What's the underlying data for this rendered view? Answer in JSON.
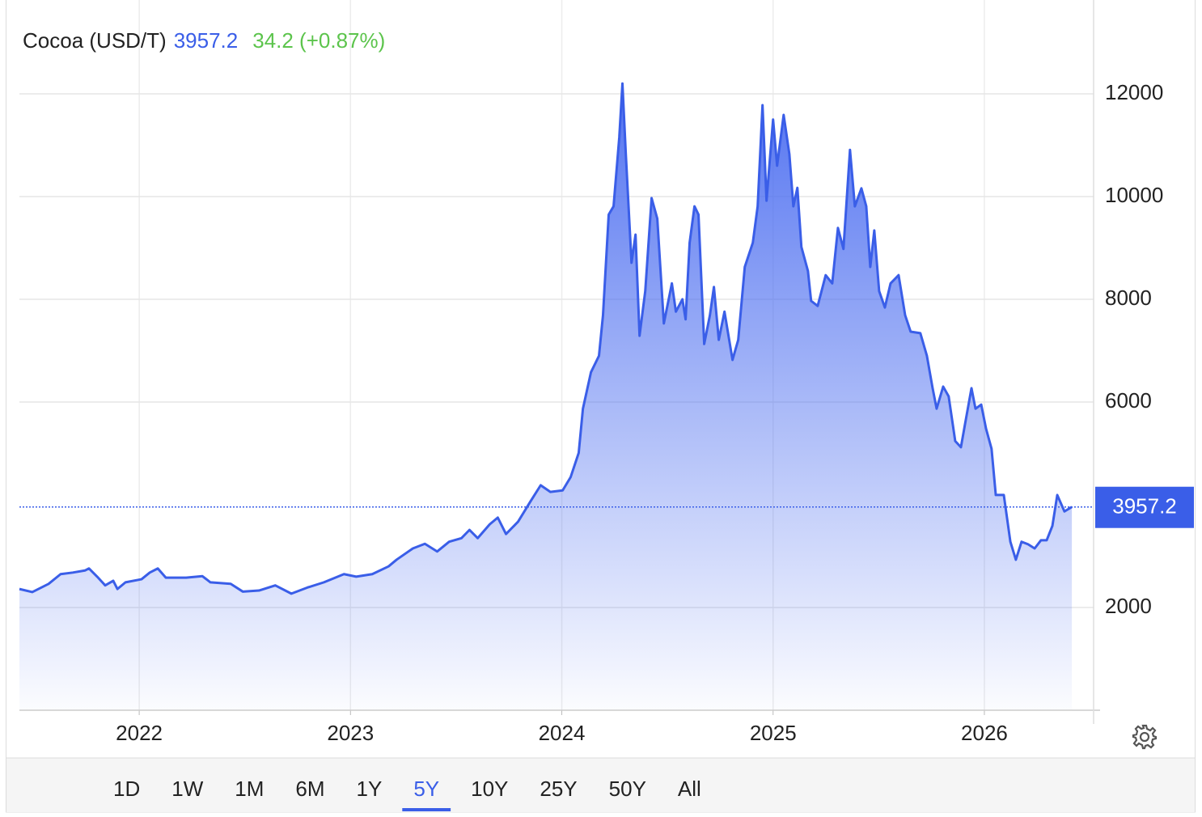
{
  "chart_data": {
    "type": "area",
    "title": "Cocoa (USD/T)",
    "last_value": 3957.2,
    "change": "34.2 (+0.87%)",
    "color": "#3a5ee8",
    "value_color": "#3a5ee8",
    "change_color": "#5cc44c",
    "grid": true,
    "xlim": [
      2021.433,
      2026.517
    ],
    "xticks": [
      2022,
      2023,
      2024,
      2025,
      2026
    ],
    "ylim": [
      0,
      13500
    ],
    "yticks": [
      2000,
      6000,
      8000,
      10000,
      12000
    ],
    "x": [
      2021.433,
      2021.494,
      2021.571,
      2021.628,
      2021.686,
      2021.743,
      2021.762,
      2021.801,
      2021.839,
      2021.877,
      2021.897,
      2021.935,
      2022.011,
      2022.05,
      2022.088,
      2022.126,
      2022.222,
      2022.299,
      2022.337,
      2022.433,
      2022.49,
      2022.567,
      2022.644,
      2022.72,
      2022.797,
      2022.874,
      2022.969,
      2023.027,
      2023.103,
      2023.18,
      2023.218,
      2023.295,
      2023.352,
      2023.41,
      2023.467,
      2023.525,
      2023.563,
      2023.602,
      2023.659,
      2023.697,
      2023.736,
      2023.793,
      2023.851,
      2023.9,
      2023.946,
      2024.004,
      2024.042,
      2024.08,
      2024.1,
      2024.138,
      2024.176,
      2024.195,
      2024.222,
      2024.245,
      2024.272,
      2024.287,
      2024.303,
      2024.33,
      2024.349,
      2024.368,
      2024.395,
      2024.425,
      2024.452,
      2024.483,
      2024.521,
      2024.54,
      2024.571,
      2024.586,
      2024.605,
      2024.628,
      2024.647,
      2024.674,
      2024.701,
      2024.72,
      2024.743,
      2024.77,
      2024.808,
      2024.835,
      2024.866,
      2024.904,
      2024.927,
      2024.95,
      2024.969,
      2025.0,
      2025.019,
      2025.05,
      2025.077,
      2025.096,
      2025.115,
      2025.134,
      2025.165,
      2025.18,
      2025.211,
      2025.249,
      2025.28,
      2025.307,
      2025.333,
      2025.364,
      2025.387,
      2025.418,
      2025.441,
      2025.46,
      2025.479,
      2025.502,
      2025.529,
      2025.556,
      2025.594,
      2025.625,
      2025.651,
      2025.697,
      2025.728,
      2025.755,
      2025.774,
      2025.805,
      2025.831,
      2025.862,
      2025.889,
      2025.908,
      2025.939,
      2025.958,
      2025.985,
      2026.008,
      2026.034,
      2026.054,
      2026.092,
      2026.123,
      2026.149,
      2026.176,
      2026.207,
      2026.238,
      2026.268,
      2026.295,
      2026.322,
      2026.345,
      2026.379,
      2026.414
    ],
    "values": [
      2360,
      2300,
      2460,
      2650,
      2680,
      2720,
      2760,
      2600,
      2430,
      2520,
      2360,
      2490,
      2550,
      2680,
      2760,
      2580,
      2580,
      2610,
      2490,
      2460,
      2310,
      2330,
      2430,
      2270,
      2390,
      2490,
      2650,
      2600,
      2650,
      2800,
      2930,
      3150,
      3240,
      3090,
      3280,
      3350,
      3510,
      3350,
      3620,
      3750,
      3430,
      3670,
      4060,
      4380,
      4250,
      4280,
      4540,
      5010,
      5870,
      6580,
      6900,
      7690,
      9650,
      9810,
      11150,
      12200,
      10830,
      8710,
      9260,
      7290,
      8160,
      9970,
      9570,
      7530,
      8310,
      7760,
      8000,
      7610,
      9100,
      9810,
      9650,
      7130,
      7690,
      8240,
      7210,
      7760,
      6820,
      7210,
      8630,
      9100,
      9810,
      11780,
      9920,
      11500,
      10600,
      11590,
      10830,
      9810,
      10170,
      9020,
      8550,
      7970,
      7870,
      8470,
      8310,
      9390,
      8980,
      10910,
      9810,
      10160,
      9810,
      8630,
      9340,
      8160,
      7840,
      8310,
      8470,
      7690,
      7370,
      7340,
      6900,
      6270,
      5870,
      6300,
      6110,
      5240,
      5120,
      5560,
      6270,
      5870,
      5950,
      5480,
      5090,
      4190,
      4190,
      3280,
      2930,
      3280,
      3230,
      3150,
      3310,
      3310,
      3590,
      4190,
      3870,
      3957.2
    ]
  },
  "range_buttons": {
    "items": [
      "1D",
      "1W",
      "1M",
      "6M",
      "1Y",
      "5Y",
      "10Y",
      "25Y",
      "50Y",
      "All"
    ],
    "selected": "5Y"
  }
}
